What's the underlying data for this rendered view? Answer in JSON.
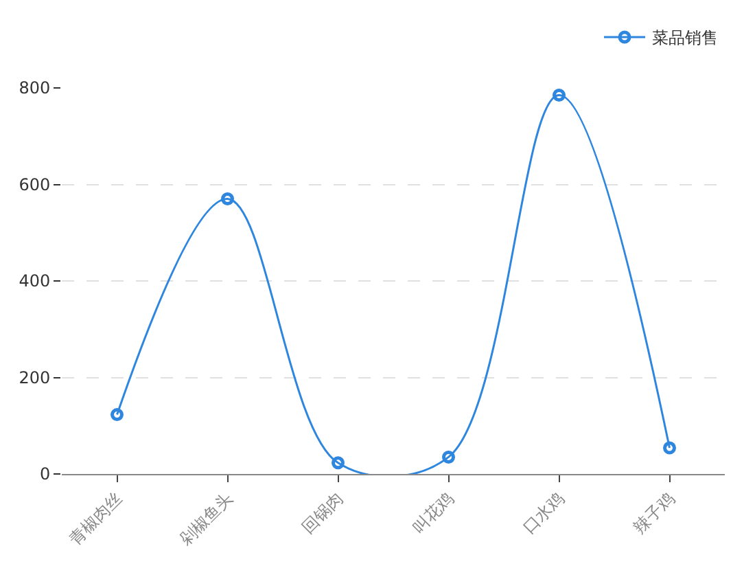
{
  "chart_data": {
    "type": "line",
    "categories": [
      "青椒肉丝",
      "剁椒鱼头",
      "回锅肉",
      "叫花鸡",
      "口水鸡",
      "辣子鸡"
    ],
    "series": [
      {
        "name": "菜品销售",
        "color": "#2e86de",
        "values": [
          123,
          570,
          23,
          35,
          785,
          54
        ]
      }
    ],
    "ylim": [
      0,
      800
    ],
    "yticks": [
      0,
      200,
      400,
      600,
      800
    ],
    "grid": "y",
    "legend": "top right",
    "marker": "circle",
    "line_style": "solid"
  }
}
